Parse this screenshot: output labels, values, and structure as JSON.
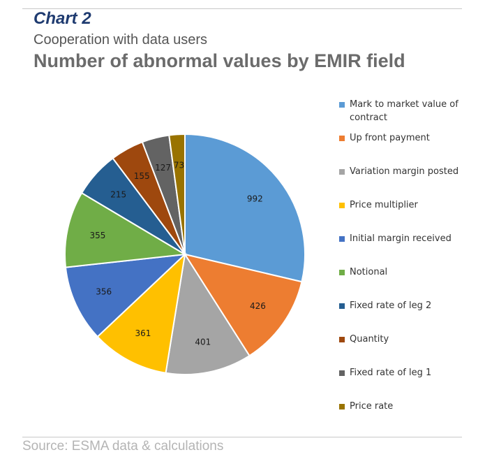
{
  "header": {
    "chart_label": "Chart 2",
    "subtitle": "Cooperation with data users",
    "title": "Number of abnormal values by EMIR field"
  },
  "footer": {
    "source": "Source: ESMA data & calculations"
  },
  "chart_data": {
    "type": "pie",
    "title": "Number of abnormal values by EMIR field",
    "legend_position": "right",
    "slices": [
      {
        "label": "Mark to market value of contract",
        "value": 992,
        "color": "#5b9bd5"
      },
      {
        "label": "Up front payment",
        "value": 426,
        "color": "#ed7d31"
      },
      {
        "label": "Variation margin posted",
        "value": 401,
        "color": "#a5a5a5"
      },
      {
        "label": "Price multiplier",
        "value": 361,
        "color": "#ffc000"
      },
      {
        "label": "Initial margin received",
        "value": 356,
        "color": "#4472c4"
      },
      {
        "label": "Notional",
        "value": 355,
        "color": "#70ad47"
      },
      {
        "label": "Fixed rate of leg 2",
        "value": 215,
        "color": "#255e91"
      },
      {
        "label": "Quantity",
        "value": 155,
        "color": "#9e480e"
      },
      {
        "label": "Fixed rate of leg 1",
        "value": 127,
        "color": "#636363"
      },
      {
        "label": "Price rate",
        "value": 73,
        "color": "#997300"
      }
    ]
  }
}
